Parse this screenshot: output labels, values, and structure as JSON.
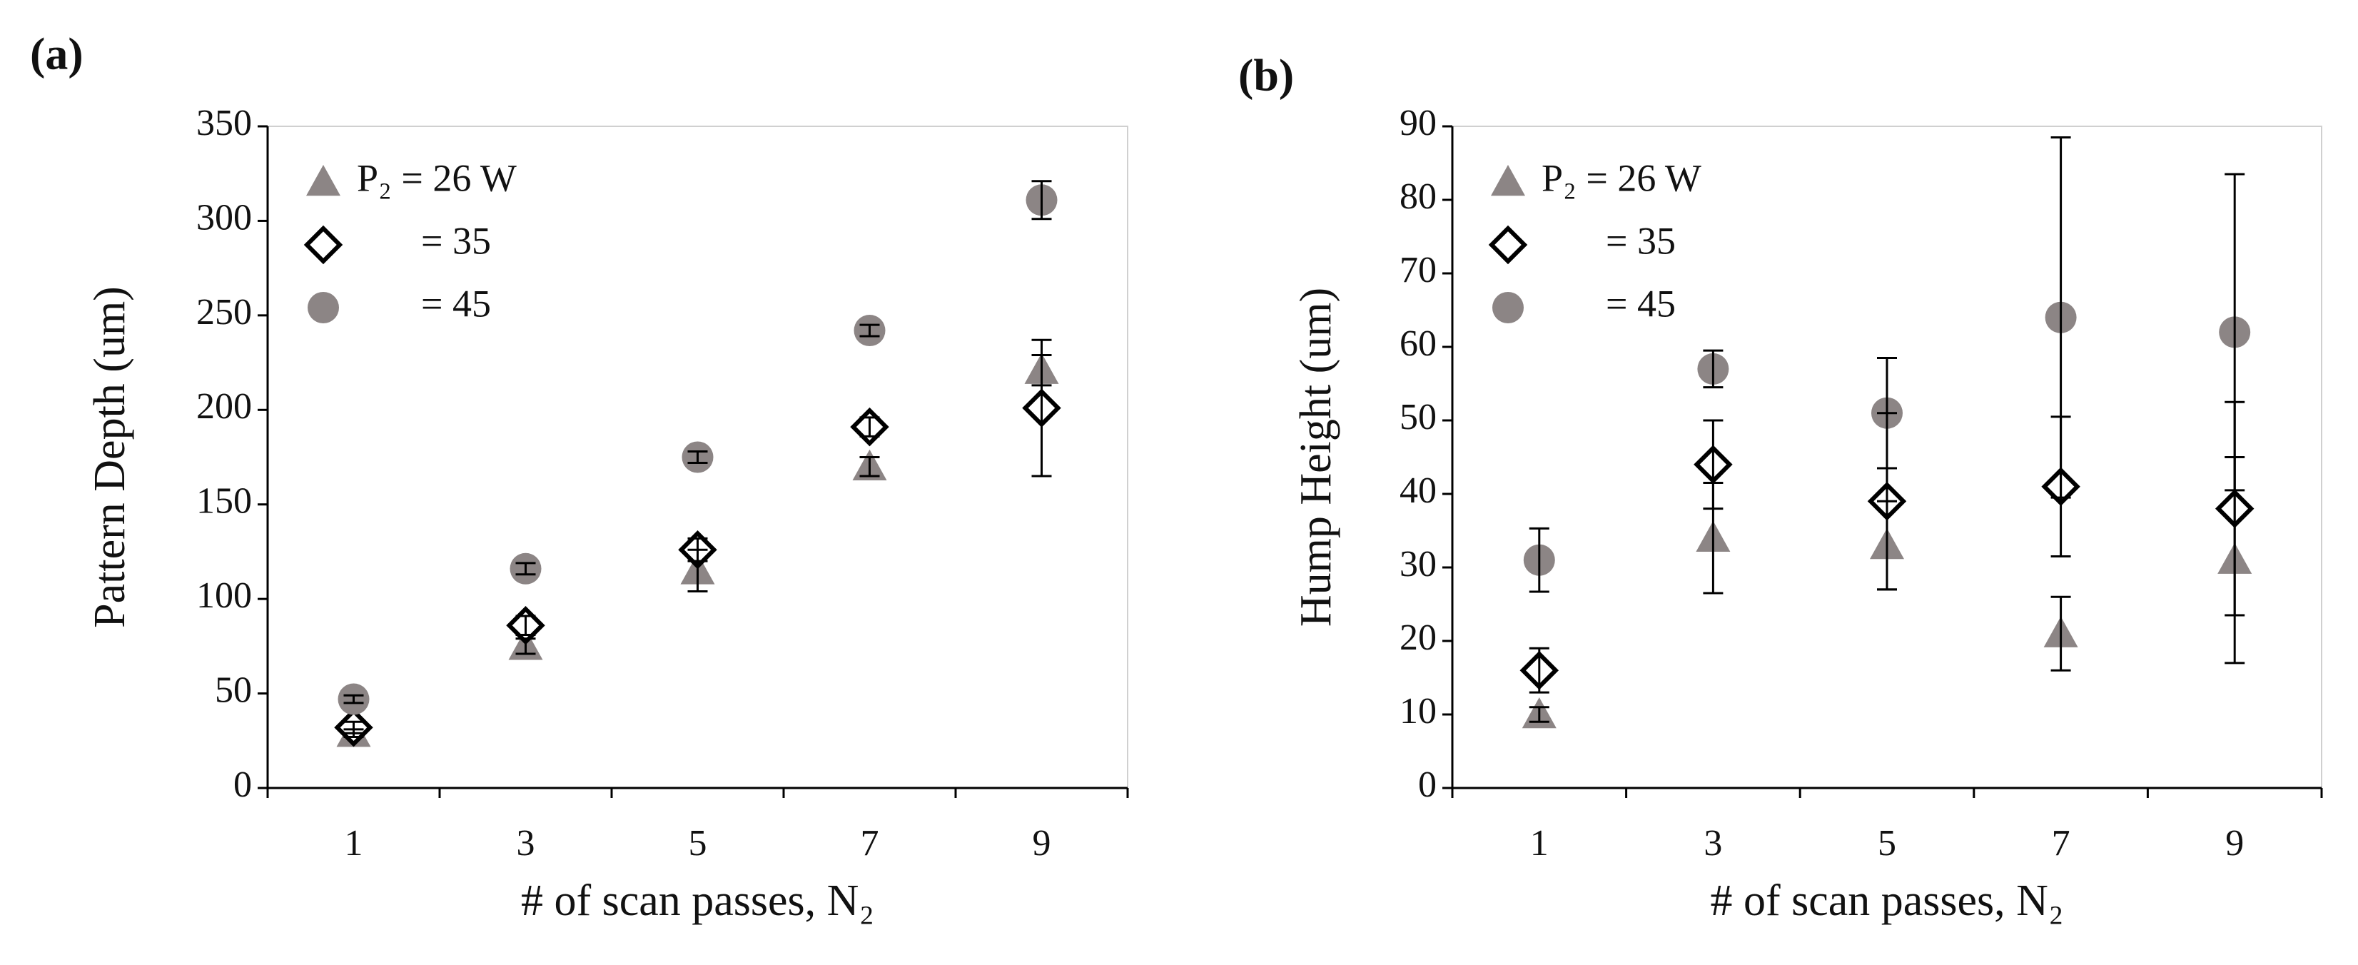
{
  "chart_data": [
    {
      "type": "scatter",
      "panel_label": "(a)",
      "xlabel": "# of scan passes, N₂",
      "ylabel": "Pattern Depth (um)",
      "categories": [
        "1",
        "3",
        "5",
        "7",
        "9"
      ],
      "ylim": [
        0,
        350
      ],
      "yticks": [
        0,
        50,
        100,
        150,
        200,
        250,
        300,
        350
      ],
      "legend": "upper left",
      "series": [
        {
          "name": "P₂ = 26 W",
          "marker": "triangle",
          "color": "#8c8585",
          "values": [
            29,
            75,
            115,
            170,
            221
          ],
          "errors": [
            2,
            4,
            11,
            5,
            8
          ]
        },
        {
          "name": "= 35",
          "marker": "diamond",
          "color": "#000000",
          "values": [
            32,
            86,
            126,
            191,
            201
          ],
          "errors": [
            3,
            5,
            6,
            5,
            36
          ]
        },
        {
          "name": "= 45",
          "marker": "circle",
          "color": "#8c8585",
          "values": [
            47,
            116,
            175,
            242,
            311
          ],
          "errors": [
            2,
            3,
            3,
            3,
            10
          ]
        }
      ]
    },
    {
      "type": "scatter",
      "panel_label": "(b)",
      "xlabel": "# of scan passes, N₂",
      "ylabel": "Hump Height (um)",
      "categories": [
        "1",
        "3",
        "5",
        "7",
        "9"
      ],
      "ylim": [
        0,
        90
      ],
      "yticks": [
        0,
        10,
        20,
        30,
        40,
        50,
        60,
        70,
        80,
        90
      ],
      "legend": "upper left",
      "series": [
        {
          "name": "P₂ = 26 W",
          "marker": "triangle",
          "color": "#8c8585",
          "values": [
            10,
            34,
            33,
            21,
            31
          ],
          "errors": [
            1,
            7.5,
            6,
            5,
            14
          ]
        },
        {
          "name": "= 35",
          "marker": "diamond",
          "color": "#000000",
          "values": [
            16,
            44,
            39,
            41,
            38
          ],
          "errors": [
            3,
            6,
            12,
            9.5,
            14.5
          ]
        },
        {
          "name": "= 45",
          "marker": "circle",
          "color": "#8c8585",
          "values": [
            31,
            57,
            51,
            64,
            62
          ],
          "errors": [
            4.3,
            2.5,
            7.5,
            24.5,
            21.5
          ]
        }
      ]
    }
  ]
}
